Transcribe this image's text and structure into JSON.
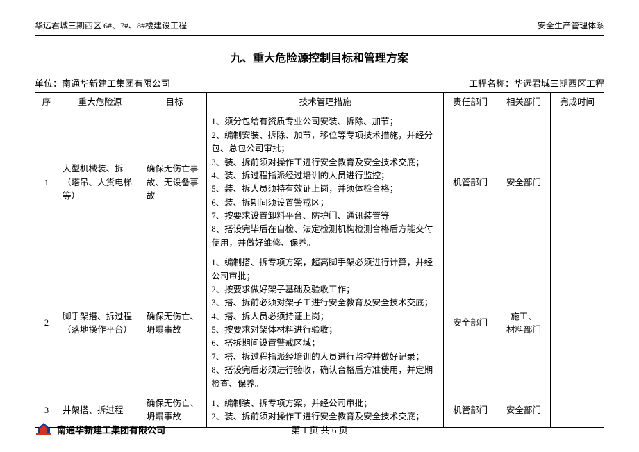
{
  "header": {
    "left": "华远君城三期西区 6#、7#、8#楼建设工程",
    "right": "安全生产管理体系"
  },
  "title": "九、重大危险源控制目标和管理方案",
  "meta": {
    "unit_label": "单位：",
    "unit_value": "南通华新建工集团有限公司",
    "project_label": "工程名称：",
    "project_value": "华远君城三期西区工程"
  },
  "columns": [
    "序",
    "重大危险源",
    "目标",
    "技术管理措施",
    "责任部门",
    "相关部门",
    "完成时间"
  ],
  "rows": [
    {
      "no": "1",
      "hazard": "大型机械装、拆（塔吊、人货电梯等）",
      "target": "确保无伤亡事故、无设备事故",
      "measures": "1、须分包给有资质专业公司安装、拆除、加节；\n2、编制安装、拆除、加节，移位等专项技术措施，并经分包、总包公司审批；\n3、装、拆前须对操作工进行安全教育及安全技术交底；\n4、装、拆过程指派经过培训的人员进行监控；\n5、装、拆人员须持有效证上岗，并须体检合格；\n6、装、拆期间须设置警戒区；\n7、按要求设置卸料平台、防护门、通讯装置等\n8、搭设完毕后在自检、法定检测机构检测合格后方能交付使用，并做好维修、保养。",
      "resp": "机管部门",
      "related": "安全部门",
      "done": ""
    },
    {
      "no": "2",
      "hazard": "脚手架搭、拆过程（落地操作平台）",
      "target": "确保无伤亡、坍塌事故",
      "measures": "1、编制搭、拆专项方案，超高脚手架必须进行计算，并经公司审批；\n2、按要求做好架子基础及验收工作；\n3、搭、拆前必须对架子工进行安全教育及安全技术交底；\n4、搭、拆人员必须持证上岗；\n5、按要求对架体材料进行验收；\n6、搭拆期间设置警戒区域；\n7、搭、拆过程指派经培训的人员进行监控并做好记录；\n8、搭设完后必须进行验收，确认合格后方准使用，并定期检查、保养。",
      "resp": "安全部门",
      "related": "施工、\n材料部门",
      "done": ""
    },
    {
      "no": "3",
      "hazard": "井架搭、拆过程",
      "target": "确保无伤亡、坍塌事故",
      "measures": "1、编制装、拆专项方案，并经公司审批；\n2、装、拆前须对操作工进行安全教育及安全技术交底；",
      "resp": "机管部门",
      "related": "安全部门",
      "done": ""
    }
  ],
  "footer": {
    "company": "南通华新建工集团有限公司",
    "pager": "第 1 页 共 6 页"
  },
  "logo_colors": {
    "blue": "#1b3a8a",
    "red": "#d23321",
    "text": "#d23321"
  }
}
